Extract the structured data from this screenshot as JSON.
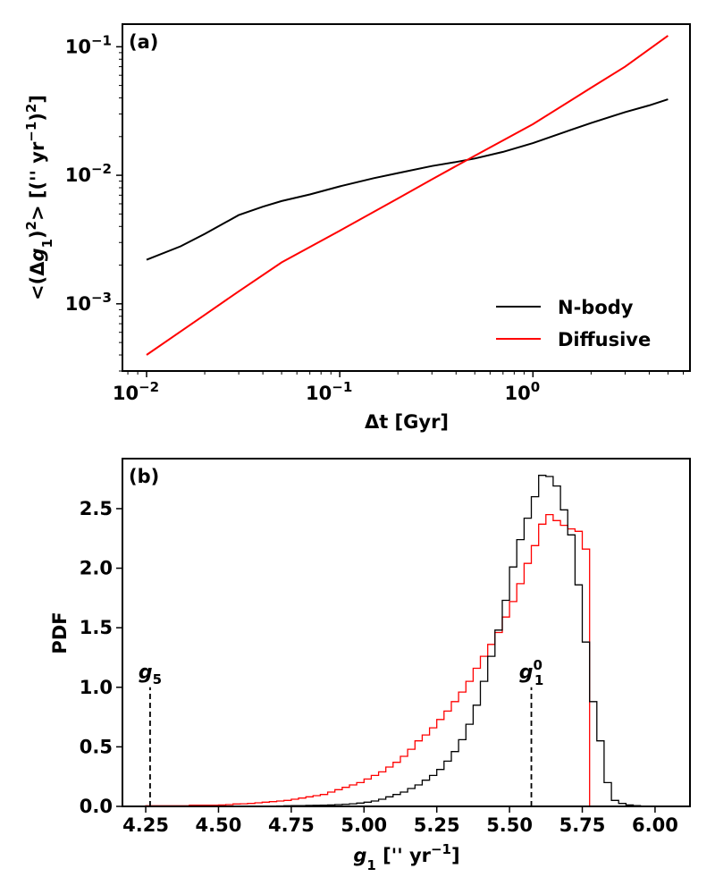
{
  "chart_data": [
    {
      "panel": "(a)",
      "type": "line",
      "xscale": "log",
      "yscale": "log",
      "xlim": [
        0.0075,
        6.5
      ],
      "ylim": [
        0.0003,
        0.15
      ],
      "xlabel_parts": [
        "Δt [Gyr]"
      ],
      "ylabel_parts": [
        "<(Δ",
        "g",
        "1",
        ")",
        "2",
        "> [('' yr",
        "−1",
        ")",
        "2",
        "]"
      ],
      "xticks": [
        {
          "value": 0.01,
          "base": "10",
          "exp": "−2"
        },
        {
          "value": 0.1,
          "base": "10",
          "exp": "−1"
        },
        {
          "value": 1,
          "base": "10",
          "exp": "0"
        }
      ],
      "yticks": [
        {
          "value": 0.001,
          "base": "10",
          "exp": "−3"
        },
        {
          "value": 0.01,
          "base": "10",
          "exp": "−2"
        },
        {
          "value": 0.1,
          "base": "10",
          "exp": "−1"
        }
      ],
      "legend_position": "lower-right",
      "series": [
        {
          "name": "N-body",
          "color": "#000000",
          "x": [
            0.01,
            0.015,
            0.02,
            0.03,
            0.04,
            0.05,
            0.07,
            0.1,
            0.15,
            0.2,
            0.3,
            0.4,
            0.5,
            0.7,
            1.0,
            1.5,
            2.0,
            3.0,
            4.0,
            5.0
          ],
          "y": [
            0.0022,
            0.0028,
            0.0035,
            0.0049,
            0.0057,
            0.0063,
            0.0071,
            0.0082,
            0.0095,
            0.0104,
            0.0118,
            0.0127,
            0.0135,
            0.0152,
            0.0178,
            0.022,
            0.0255,
            0.031,
            0.035,
            0.039
          ]
        },
        {
          "name": "Diffusive",
          "color": "#ff0000",
          "x": [
            0.01,
            0.02,
            0.03,
            0.05,
            0.1,
            0.2,
            0.3,
            0.5,
            1.0,
            2.0,
            3.0,
            5.0
          ],
          "y": [
            0.0004,
            0.00082,
            0.00125,
            0.0021,
            0.0037,
            0.0066,
            0.0093,
            0.0142,
            0.025,
            0.048,
            0.07,
            0.122
          ]
        }
      ]
    },
    {
      "panel": "(b)",
      "type": "histogram",
      "xlim": [
        4.17,
        6.12
      ],
      "ylim": [
        0,
        2.92
      ],
      "xlabel_parts": [
        "g",
        "1",
        " ['' yr",
        "−1",
        "]"
      ],
      "ylabel": "PDF",
      "xticks": [
        "4.25",
        "4.50",
        "4.75",
        "5.00",
        "5.25",
        "5.50",
        "5.75",
        "6.00"
      ],
      "yticks": [
        "0.0",
        "0.5",
        "1.0",
        "1.5",
        "2.0",
        "2.5"
      ],
      "bin_width": 0.025,
      "series": [
        {
          "name": "Diffusive",
          "color": "#ff0000",
          "bin_start": 4.25,
          "values": [
            0.005,
            0.005,
            0.005,
            0.005,
            0.005,
            0.005,
            0.01,
            0.01,
            0.01,
            0.01,
            0.012,
            0.015,
            0.02,
            0.022,
            0.025,
            0.03,
            0.035,
            0.04,
            0.045,
            0.05,
            0.06,
            0.07,
            0.08,
            0.09,
            0.1,
            0.12,
            0.14,
            0.16,
            0.18,
            0.2,
            0.23,
            0.26,
            0.29,
            0.33,
            0.37,
            0.42,
            0.48,
            0.55,
            0.6,
            0.66,
            0.73,
            0.8,
            0.88,
            0.96,
            1.05,
            1.16,
            1.26,
            1.36,
            1.46,
            1.59,
            1.72,
            1.87,
            2.04,
            2.19,
            2.37,
            2.45,
            2.4,
            2.36,
            2.33,
            2.31,
            2.16
          ]
        },
        {
          "name": "N-body",
          "color": "#000000",
          "bin_start": 4.65,
          "values": [
            0.003,
            0.003,
            0.004,
            0.005,
            0.006,
            0.007,
            0.008,
            0.009,
            0.01,
            0.012,
            0.015,
            0.018,
            0.022,
            0.028,
            0.035,
            0.045,
            0.06,
            0.08,
            0.1,
            0.12,
            0.15,
            0.18,
            0.22,
            0.26,
            0.31,
            0.38,
            0.46,
            0.56,
            0.69,
            0.85,
            1.05,
            1.26,
            1.48,
            1.73,
            2.01,
            2.24,
            2.42,
            2.6,
            2.78,
            2.77,
            2.69,
            2.49,
            2.28,
            1.86,
            1.38,
            0.88,
            0.55,
            0.2,
            0.05,
            0.025,
            0.012,
            0.006,
            0.003
          ]
        }
      ],
      "annotations": [
        {
          "label_base": "g",
          "label_sub": "5",
          "label_sup": "",
          "x": 4.265,
          "line_top": 1.0
        },
        {
          "label_base": "g",
          "label_sub": "1",
          "label_sup": "0",
          "x": 5.575,
          "line_top": 1.0
        }
      ]
    }
  ]
}
